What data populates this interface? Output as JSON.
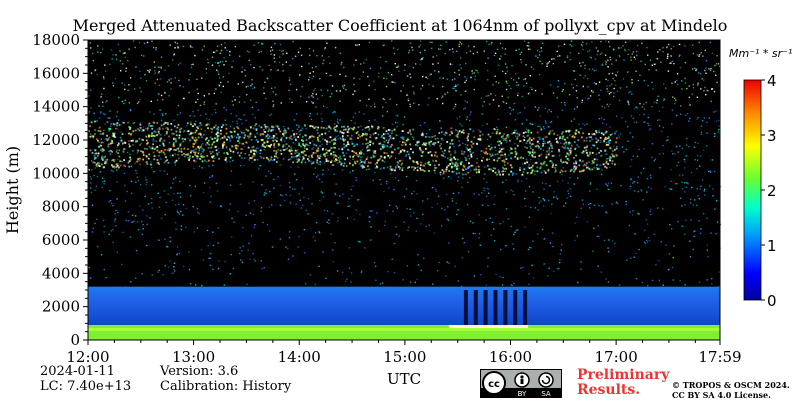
{
  "chart_data": {
    "type": "heatmap",
    "title": "Merged Attenuated Backscatter Coefficient at 1064nm of pollyxt_cpv at Mindelo",
    "xlabel": "UTC",
    "ylabel": "Height (m)",
    "x_ticks": [
      "12:00",
      "13:00",
      "14:00",
      "15:00",
      "16:00",
      "17:00",
      "17:59"
    ],
    "y_ticks": [
      "0",
      "2000",
      "4000",
      "6000",
      "8000",
      "10000",
      "12000",
      "14000",
      "16000",
      "18000"
    ],
    "ylim": [
      0,
      18000
    ],
    "xlim": [
      "12:00",
      "17:59"
    ],
    "colorbar": {
      "unit": "Mm⁻¹ * sr⁻¹",
      "ticks": [
        "0",
        "1",
        "2",
        "3",
        "4"
      ],
      "range": [
        0,
        4
      ],
      "colormap": "jet"
    },
    "layers": [
      {
        "feature": "surface layer",
        "height_range_m": [
          0,
          900
        ],
        "value_range": [
          1.8,
          2.5
        ],
        "time_range": [
          "12:00",
          "17:59"
        ]
      },
      {
        "feature": "boundary layer aerosol",
        "height_range_m": [
          900,
          3200
        ],
        "value_range": [
          0.4,
          0.8
        ],
        "time_range": [
          "12:00",
          "17:59"
        ]
      },
      {
        "feature": "cirrus cloud",
        "height_range_m": [
          10200,
          13200
        ],
        "value_range": [
          1.5,
          4
        ],
        "time_range": [
          "12:00",
          "17:00"
        ]
      },
      {
        "feature": "low cloud tops",
        "height_range_m": [
          700,
          900
        ],
        "value_range": [
          3,
          4
        ],
        "time_range": [
          "15:25",
          "16:10"
        ]
      }
    ]
  },
  "meta": {
    "date": "2024-01-11",
    "lc": "LC: 7.40e+13",
    "version": "Version: 3.6",
    "calibration": "Calibration: History"
  },
  "badges": {
    "preliminary_line1": "Preliminary",
    "preliminary_line2": "Results.",
    "copyright_line1": "© TROPOS & OSCM 2024.",
    "copyright_line2": "CC BY SA 4.0 License.",
    "license_badge": [
      "cc",
      "BY",
      "SA"
    ]
  },
  "colors": {
    "background": "#000000",
    "preliminary": "#ee3333"
  }
}
